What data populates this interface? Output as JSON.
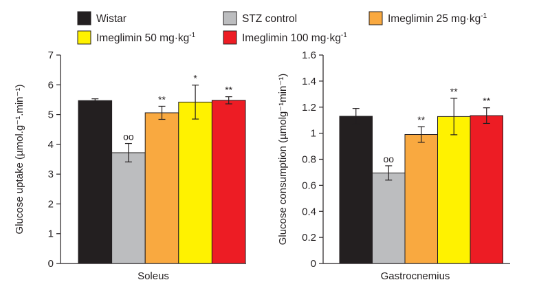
{
  "legend": [
    {
      "label": "Wistar",
      "sup": "",
      "color": "#231f20"
    },
    {
      "label": "STZ control",
      "sup": "",
      "color": "#bcbdbf"
    },
    {
      "label": "Imeglimin 25 mg·kg",
      "sup": "-1",
      "color": "#f9a940"
    },
    {
      "label": "Imeglimin 50 mg·kg",
      "sup": "-1",
      "color": "#fff200"
    },
    {
      "label": "Imeglimin 100 mg·kg",
      "sup": "-1",
      "color": "#ed1c24"
    }
  ],
  "chart_data": [
    {
      "type": "bar",
      "xlabel": "Soleus",
      "ylabel": "Glucose uptake (µmol.g⁻¹.min⁻¹)",
      "ylim": [
        0,
        7
      ],
      "yticks": [
        0,
        1,
        2,
        3,
        4,
        5,
        6,
        7
      ],
      "ytick_labels": [
        "0",
        "1",
        "2",
        "3",
        "4",
        "5",
        "6",
        "7"
      ],
      "categories": [
        "Wistar",
        "STZ control",
        "Imeglimin 25 mg·kg-1",
        "Imeglimin 50 mg·kg-1",
        "Imeglimin 100 mg·kg-1"
      ],
      "values": [
        5.47,
        3.72,
        5.06,
        5.42,
        5.48
      ],
      "errors": [
        0.06,
        0.31,
        0.22,
        0.57,
        0.12
      ],
      "annotations": [
        "",
        "oo",
        "**",
        "*",
        "**"
      ],
      "colors": [
        "#231f20",
        "#bcbdbf",
        "#f9a940",
        "#fff200",
        "#ed1c24"
      ]
    },
    {
      "type": "bar",
      "xlabel": "Gastrocnemius",
      "ylabel": "Glucose consumption (µmolg⁻¹min⁻¹)",
      "ylim": [
        0,
        1.6
      ],
      "yticks": [
        0,
        0.2,
        0.4,
        0.6,
        0.8,
        1.0,
        1.2,
        1.4,
        1.6
      ],
      "ytick_labels": [
        "0",
        "0.2",
        "0.4",
        "0.6",
        "0.8",
        "1",
        "1.2",
        "1.4",
        "1.6"
      ],
      "categories": [
        "Wistar",
        "STZ control",
        "Imeglimin 25 mg·kg-1",
        "Imeglimin 50 mg·kg-1",
        "Imeglimin 100 mg·kg-1"
      ],
      "values": [
        1.13,
        0.695,
        0.99,
        1.128,
        1.135
      ],
      "errors": [
        0.06,
        0.055,
        0.06,
        0.14,
        0.06
      ],
      "annotations": [
        "",
        "oo",
        "**",
        "**",
        "**"
      ],
      "colors": [
        "#231f20",
        "#bcbdbf",
        "#f9a940",
        "#fff200",
        "#ed1c24"
      ]
    }
  ]
}
